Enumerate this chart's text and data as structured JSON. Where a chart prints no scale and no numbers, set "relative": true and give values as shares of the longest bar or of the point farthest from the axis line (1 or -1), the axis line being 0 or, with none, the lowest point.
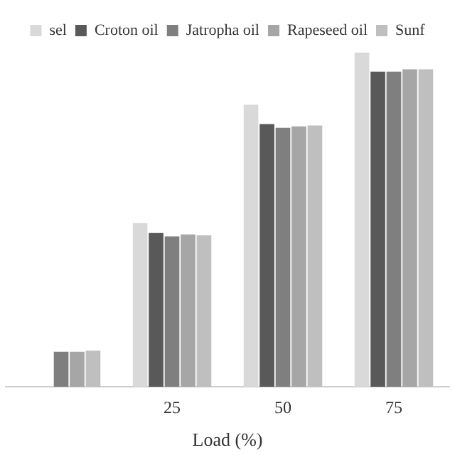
{
  "chart_data": {
    "type": "bar",
    "xlabel": "Load (%)",
    "relative": true,
    "legend": "top",
    "grid": false,
    "categories": [
      null,
      "25",
      "50",
      "75"
    ],
    "series": [
      {
        "name": "sel",
        "color": "#d9d9d9",
        "values": [
          null,
          0.49,
          0.844,
          1
        ]
      },
      {
        "name": "Croton oil",
        "color": "#595959",
        "values": [
          null,
          0.46,
          0.786,
          0.943
        ]
      },
      {
        "name": "Jatropha oil",
        "color": "#7f7f7f",
        "values": [
          0.105,
          0.45,
          0.775,
          0.943
        ]
      },
      {
        "name": "Rapeseed oil",
        "color": "#a6a6a6",
        "values": [
          0.105,
          0.456,
          0.779,
          0.95
        ]
      },
      {
        "name": "Sunf",
        "color": "#bfbfbf",
        "values": [
          0.108,
          0.453,
          0.782,
          0.95
        ]
      }
    ]
  }
}
